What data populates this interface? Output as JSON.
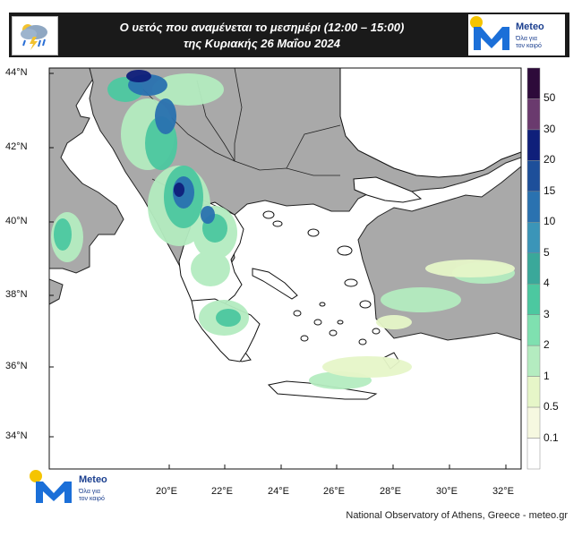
{
  "header": {
    "title_line1": "Ο υετός που αναμένεται το μεσημέρι (12:00 – 15:00)",
    "title_line2": "της Κυριακής 26 Μαΐου 2024"
  },
  "logo": {
    "brand": "Meteo",
    "tagline_line1": "Όλα για",
    "tagline_line2": "τον καιρό"
  },
  "map": {
    "lat_labels": [
      "44°N",
      "42°N",
      "40°N",
      "38°N",
      "36°N",
      "34°N"
    ],
    "lon_labels": [
      "20°E",
      "22°E",
      "24°E",
      "26°E",
      "28°E",
      "30°E",
      "32°E"
    ]
  },
  "colorbar": {
    "labels": [
      "50",
      "30",
      "20",
      "15",
      "10",
      "5",
      "4",
      "3",
      "2",
      "1",
      "0.5",
      "0.1"
    ],
    "colors": [
      "#2d0a3a",
      "#6a3a6e",
      "#0f1f7a",
      "#1d4f9a",
      "#2a72b0",
      "#3b95b8",
      "#3aa89a",
      "#4cc8a0",
      "#7fe0b0",
      "#b4ecc0",
      "#e6f6c8",
      "#f6f8e0",
      "#ffffff"
    ]
  },
  "credit": "National Observatory of Athens, Greece - meteo.gr"
}
